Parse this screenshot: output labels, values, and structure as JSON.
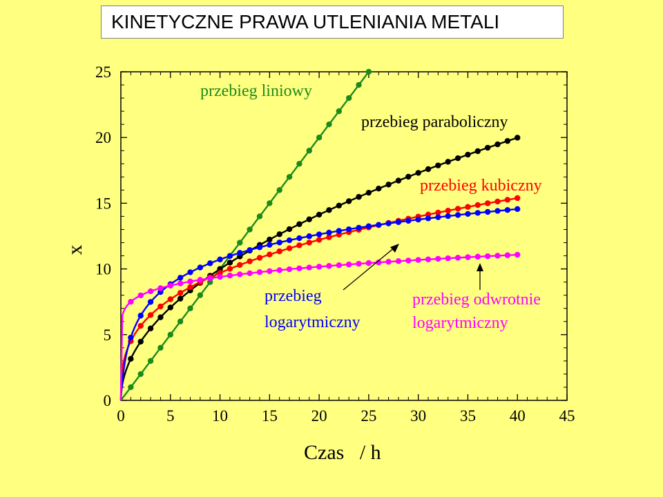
{
  "page_title": "KINETYCZNE PRAWA UTLENIANIA METALI",
  "colors": {
    "background": "#FFFF80",
    "linear": "#1A8A1A",
    "parabolic": "#000000",
    "cubic": "#FF0000",
    "logarithmic": "#0000FF",
    "inverse_logarithmic": "#FF00FF"
  },
  "chart_data": {
    "type": "line",
    "title": "",
    "xlabel": "Czas   / h",
    "ylabel": "x",
    "xlim": [
      0,
      45
    ],
    "ylim": [
      0,
      25
    ],
    "x_ticks": [
      "0",
      "5",
      "10",
      "15",
      "20",
      "25",
      "30",
      "35",
      "40",
      "45"
    ],
    "y_ticks": [
      "0",
      "5",
      "10",
      "15",
      "20",
      "25"
    ],
    "grid": false,
    "series": [
      {
        "name": "przebieg liniowy",
        "key": "linear",
        "law": "x = 1.0 t",
        "t_max": 25,
        "t_step": 1
      },
      {
        "name": "przebieg paraboliczny",
        "key": "parabolic",
        "law": "x = 3.16 t^(1/2)",
        "t_max": 40,
        "t_step": 1
      },
      {
        "name": "przebieg kubiczny",
        "key": "cubic",
        "law": "x = 4.5 t^(1/3)",
        "t_max": 40,
        "t_step": 1
      },
      {
        "name": "przebieg logarytmiczny",
        "key": "logarithmic",
        "law": "x = 2.8 ln(1 + 4.5 t)",
        "t_max": 40,
        "t_step": 1
      },
      {
        "name": "przebieg odwrotnie logarytmiczny",
        "key": "inverse_logarithmic",
        "law": "1/x = 0.1333 - 0.01167 ln t",
        "t_max": 40,
        "t_step": 1
      }
    ],
    "annotations": {
      "linear": "przebieg liniowy",
      "parabolic": "przebieg paraboliczny",
      "cubic": "przebieg kubiczny",
      "log_line1": "przebieg",
      "log_line2": "logarytmiczny",
      "invlog_line1": "przebieg odwrotnie",
      "invlog_line2": "logarytmiczny"
    }
  }
}
